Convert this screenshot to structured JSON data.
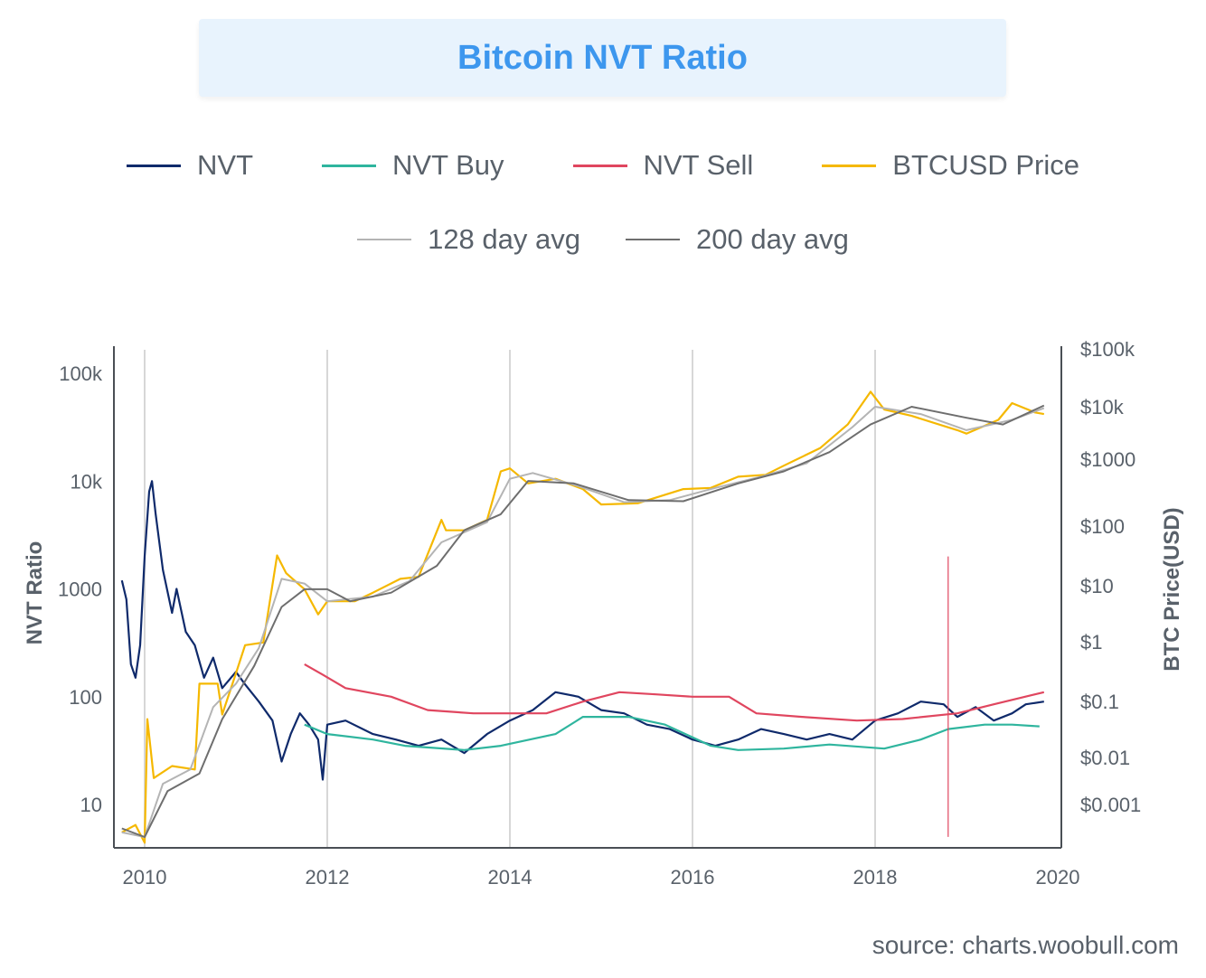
{
  "chart_data": {
    "type": "line",
    "title": "Bitcoin NVT Ratio",
    "ylabel": "NVT Ratio",
    "y2label": "BTC Price(USD)",
    "xlabel": "",
    "x_ticks": [
      "2010",
      "2012",
      "2014",
      "2016",
      "2018",
      "2020"
    ],
    "y_ticks": [
      "100k",
      "10k",
      "1000",
      "100",
      "10"
    ],
    "y2_ticks": [
      "$100k",
      "$10k",
      "$1000",
      "$100",
      "$10",
      "$1",
      "$0.1",
      "$0.01",
      "$0.001"
    ],
    "y_scale": "log",
    "y2_scale": "log",
    "grid": "vertical",
    "legend": "top-center",
    "series": [
      {
        "name": "NVT",
        "color": "#0f2a6b",
        "axis": "left",
        "points": [
          [
            2009.75,
            1200
          ],
          [
            2009.8,
            800
          ],
          [
            2009.85,
            200
          ],
          [
            2009.9,
            150
          ],
          [
            2009.95,
            300
          ],
          [
            2010.0,
            2000
          ],
          [
            2010.05,
            8000
          ],
          [
            2010.08,
            10000
          ],
          [
            2010.12,
            5000
          ],
          [
            2010.2,
            1500
          ],
          [
            2010.3,
            600
          ],
          [
            2010.35,
            1000
          ],
          [
            2010.45,
            400
          ],
          [
            2010.55,
            300
          ],
          [
            2010.65,
            150
          ],
          [
            2010.75,
            230
          ],
          [
            2010.85,
            120
          ],
          [
            2011.0,
            170
          ],
          [
            2011.1,
            130
          ],
          [
            2011.25,
            90
          ],
          [
            2011.4,
            60
          ],
          [
            2011.5,
            25
          ],
          [
            2011.6,
            45
          ],
          [
            2011.7,
            70
          ],
          [
            2011.8,
            55
          ],
          [
            2011.9,
            40
          ],
          [
            2011.95,
            17
          ],
          [
            2012.0,
            55
          ],
          [
            2012.2,
            60
          ],
          [
            2012.5,
            45
          ],
          [
            2012.75,
            40
          ],
          [
            2013.0,
            35
          ],
          [
            2013.25,
            40
          ],
          [
            2013.5,
            30
          ],
          [
            2013.75,
            45
          ],
          [
            2014.0,
            60
          ],
          [
            2014.25,
            75
          ],
          [
            2014.5,
            110
          ],
          [
            2014.75,
            100
          ],
          [
            2015.0,
            75
          ],
          [
            2015.25,
            70
          ],
          [
            2015.5,
            55
          ],
          [
            2015.75,
            50
          ],
          [
            2016.0,
            40
          ],
          [
            2016.25,
            35
          ],
          [
            2016.5,
            40
          ],
          [
            2016.75,
            50
          ],
          [
            2017.0,
            45
          ],
          [
            2017.25,
            40
          ],
          [
            2017.5,
            45
          ],
          [
            2017.75,
            40
          ],
          [
            2018.0,
            60
          ],
          [
            2018.25,
            70
          ],
          [
            2018.5,
            90
          ],
          [
            2018.75,
            85
          ],
          [
            2018.9,
            65
          ],
          [
            2019.1,
            80
          ],
          [
            2019.3,
            60
          ],
          [
            2019.5,
            70
          ],
          [
            2019.65,
            85
          ],
          [
            2019.85,
            90
          ]
        ]
      },
      {
        "name": "NVT Buy",
        "color": "#2fb59e",
        "axis": "left",
        "points": [
          [
            2011.75,
            55
          ],
          [
            2012.0,
            45
          ],
          [
            2012.5,
            40
          ],
          [
            2012.85,
            35
          ],
          [
            2013.5,
            32
          ],
          [
            2013.9,
            35
          ],
          [
            2014.5,
            45
          ],
          [
            2014.8,
            65
          ],
          [
            2015.3,
            65
          ],
          [
            2015.7,
            55
          ],
          [
            2016.2,
            35
          ],
          [
            2016.5,
            32
          ],
          [
            2017.0,
            33
          ],
          [
            2017.5,
            36
          ],
          [
            2018.1,
            33
          ],
          [
            2018.5,
            40
          ],
          [
            2018.8,
            50
          ],
          [
            2019.2,
            55
          ],
          [
            2019.5,
            55
          ],
          [
            2019.8,
            53
          ]
        ]
      },
      {
        "name": "NVT Sell",
        "color": "#e0465f",
        "axis": "left",
        "points": [
          [
            2011.75,
            200
          ],
          [
            2011.95,
            160
          ],
          [
            2012.2,
            120
          ],
          [
            2012.7,
            100
          ],
          [
            2013.1,
            75
          ],
          [
            2013.6,
            70
          ],
          [
            2014.0,
            70
          ],
          [
            2014.4,
            70
          ],
          [
            2014.8,
            90
          ],
          [
            2015.2,
            110
          ],
          [
            2015.6,
            105
          ],
          [
            2016.0,
            100
          ],
          [
            2016.4,
            100
          ],
          [
            2016.7,
            70
          ],
          [
            2017.2,
            65
          ],
          [
            2017.8,
            60
          ],
          [
            2018.3,
            62
          ],
          [
            2018.9,
            70
          ],
          [
            2019.3,
            85
          ],
          [
            2019.85,
            110
          ]
        ]
      },
      {
        "name": "NVT Sell spike",
        "color": "#e0465f",
        "axis": "left",
        "points": [
          [
            2018.8,
            5
          ],
          [
            2018.8,
            2000
          ]
        ]
      },
      {
        "name": "BTCUSD Price",
        "color": "#f5b800",
        "axis": "right",
        "points": [
          [
            2009.75,
            0.0006
          ],
          [
            2009.9,
            0.0008
          ],
          [
            2010.0,
            0.0004
          ],
          [
            2010.03,
            0.05
          ],
          [
            2010.1,
            0.005
          ],
          [
            2010.3,
            0.008
          ],
          [
            2010.55,
            0.007
          ],
          [
            2010.6,
            0.2
          ],
          [
            2010.8,
            0.2
          ],
          [
            2010.85,
            0.06
          ],
          [
            2011.0,
            0.3
          ],
          [
            2011.1,
            0.9
          ],
          [
            2011.3,
            1
          ],
          [
            2011.45,
            30
          ],
          [
            2011.55,
            15
          ],
          [
            2011.75,
            8
          ],
          [
            2011.9,
            3
          ],
          [
            2012.0,
            5
          ],
          [
            2012.3,
            5
          ],
          [
            2012.5,
            7
          ],
          [
            2012.8,
            12
          ],
          [
            2013.0,
            13
          ],
          [
            2013.25,
            120
          ],
          [
            2013.3,
            80
          ],
          [
            2013.5,
            80
          ],
          [
            2013.75,
            120
          ],
          [
            2013.9,
            800
          ],
          [
            2014.0,
            900
          ],
          [
            2014.2,
            500
          ],
          [
            2014.5,
            600
          ],
          [
            2014.8,
            400
          ],
          [
            2015.0,
            220
          ],
          [
            2015.4,
            230
          ],
          [
            2015.9,
            400
          ],
          [
            2016.2,
            420
          ],
          [
            2016.5,
            650
          ],
          [
            2016.8,
            700
          ],
          [
            2017.0,
            1000
          ],
          [
            2017.4,
            2000
          ],
          [
            2017.7,
            5000
          ],
          [
            2017.95,
            18000
          ],
          [
            2018.1,
            9000
          ],
          [
            2018.4,
            7000
          ],
          [
            2018.9,
            4000
          ],
          [
            2019.0,
            3500
          ],
          [
            2019.35,
            6000
          ],
          [
            2019.5,
            11500
          ],
          [
            2019.75,
            8000
          ],
          [
            2019.85,
            7500
          ]
        ]
      },
      {
        "name": "128 day avg",
        "color": "#b4b4b4",
        "axis": "right",
        "points": [
          [
            2009.75,
            0.0006
          ],
          [
            2010.0,
            0.0005
          ],
          [
            2010.2,
            0.004
          ],
          [
            2010.5,
            0.007
          ],
          [
            2010.75,
            0.08
          ],
          [
            2011.0,
            0.2
          ],
          [
            2011.25,
            0.8
          ],
          [
            2011.5,
            12
          ],
          [
            2011.75,
            10
          ],
          [
            2012.0,
            5
          ],
          [
            2012.5,
            6
          ],
          [
            2012.9,
            11
          ],
          [
            2013.25,
            50
          ],
          [
            2013.75,
            110
          ],
          [
            2014.0,
            600
          ],
          [
            2014.25,
            750
          ],
          [
            2014.75,
            450
          ],
          [
            2015.25,
            240
          ],
          [
            2015.75,
            260
          ],
          [
            2016.25,
            420
          ],
          [
            2016.75,
            650
          ],
          [
            2017.25,
            1100
          ],
          [
            2017.75,
            4500
          ],
          [
            2018.0,
            10000
          ],
          [
            2018.5,
            7500
          ],
          [
            2019.0,
            4000
          ],
          [
            2019.5,
            6000
          ],
          [
            2019.85,
            9500
          ]
        ]
      },
      {
        "name": "200 day avg",
        "color": "#6e6e6e",
        "axis": "right",
        "points": [
          [
            2009.75,
            0.0007
          ],
          [
            2010.0,
            0.0005
          ],
          [
            2010.25,
            0.003
          ],
          [
            2010.6,
            0.006
          ],
          [
            2010.85,
            0.05
          ],
          [
            2011.2,
            0.4
          ],
          [
            2011.5,
            4
          ],
          [
            2011.75,
            8
          ],
          [
            2012.0,
            8
          ],
          [
            2012.25,
            5
          ],
          [
            2012.7,
            7
          ],
          [
            2013.2,
            20
          ],
          [
            2013.5,
            80
          ],
          [
            2013.9,
            150
          ],
          [
            2014.2,
            550
          ],
          [
            2014.7,
            500
          ],
          [
            2015.3,
            260
          ],
          [
            2015.9,
            250
          ],
          [
            2016.5,
            500
          ],
          [
            2017.0,
            800
          ],
          [
            2017.5,
            1700
          ],
          [
            2017.95,
            5000
          ],
          [
            2018.4,
            10000
          ],
          [
            2019.0,
            6500
          ],
          [
            2019.4,
            5000
          ],
          [
            2019.85,
            10500
          ]
        ]
      }
    ]
  },
  "legend": [
    {
      "label": "NVT",
      "color": "#0f2a6b"
    },
    {
      "label": "NVT Buy",
      "color": "#2fb59e"
    },
    {
      "label": "NVT Sell",
      "color": "#e0465f"
    },
    {
      "label": "BTCUSD Price",
      "color": "#f5b800"
    },
    {
      "label": "128 day avg",
      "color": "#b4b4b4"
    },
    {
      "label": "200 day avg",
      "color": "#6e6e6e"
    }
  ],
  "source": "source: charts.woobull.com"
}
